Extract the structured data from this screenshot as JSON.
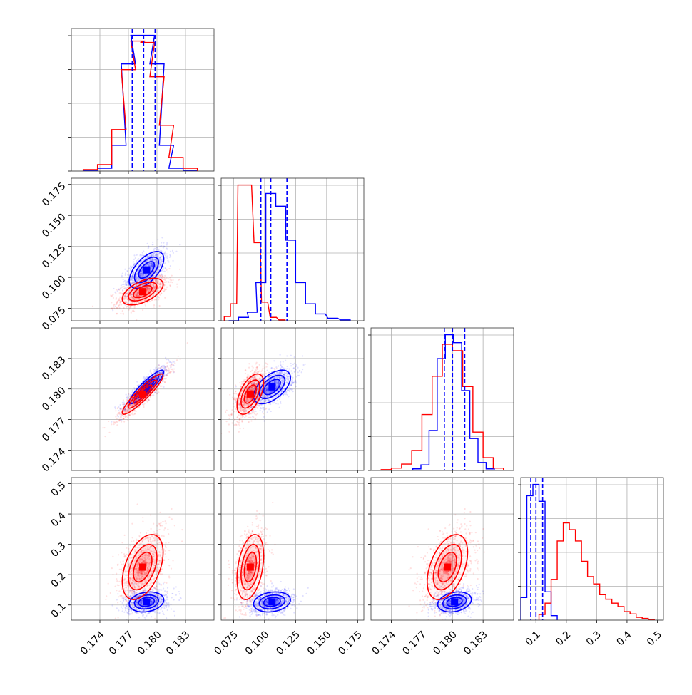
{
  "chart_data": {
    "type": "scatter",
    "style": {
      "grid": true,
      "legend": "none"
    },
    "series": [
      {
        "color": "#0000ff"
      },
      {
        "color": "#ff0000"
      }
    ],
    "tick_labels": {
      "p0": [
        "0.174",
        "0.177",
        "0.180",
        "0.183"
      ],
      "p1": [
        "0.075",
        "0.100",
        "0.125",
        "0.150",
        "0.175"
      ],
      "p2": [
        "0.174",
        "0.177",
        "0.180",
        "0.183"
      ],
      "p3": [
        "0.1",
        "0.2",
        "0.3",
        "0.4",
        "0.5"
      ]
    },
    "params": [
      {
        "ticks": [
          0.174,
          0.177,
          0.18,
          0.183
        ],
        "range": [
          0.171,
          0.186
        ]
      },
      {
        "ticks": [
          0.075,
          0.1,
          0.125,
          0.15,
          0.175
        ],
        "range": [
          0.065,
          0.18
        ]
      },
      {
        "ticks": [
          0.174,
          0.177,
          0.18,
          0.183
        ],
        "range": [
          0.172,
          0.186
        ]
      },
      {
        "ticks": [
          0.1,
          0.2,
          0.3,
          0.4,
          0.5
        ],
        "range": [
          0.05,
          0.52
        ]
      }
    ],
    "diagonal": [
      {
        "param": 0,
        "quantile_lines": [
          0.1774,
          0.1786,
          0.1798
        ],
        "hist_blue": {
          "x": [
            0.173,
            0.1745,
            0.176,
            0.177,
            0.178,
            0.179,
            0.18,
            0.181,
            0.182,
            0.1835
          ],
          "y": [
            1,
            4,
            36,
            150,
            190,
            190,
            150,
            36,
            4,
            1
          ]
        },
        "hist_red": {
          "x": [
            0.173,
            0.1745,
            0.176,
            0.177,
            0.178,
            0.179,
            0.18,
            0.181,
            0.182,
            0.1835
          ],
          "y": [
            2,
            9,
            58,
            142,
            182,
            180,
            132,
            64,
            19,
            4
          ]
        }
      },
      {
        "param": 1,
        "quantile_lines": [
          0.097,
          0.105,
          0.118
        ],
        "hist_blue": {
          "x": [
            0.075,
            0.083,
            0.09,
            0.097,
            0.105,
            0.113,
            0.121,
            0.129,
            0.137,
            0.145,
            0.155,
            0.165
          ],
          "y": [
            0,
            4,
            10,
            45,
            150,
            135,
            95,
            45,
            20,
            8,
            3,
            1
          ]
        },
        "hist_red": {
          "x": [
            0.07,
            0.075,
            0.081,
            0.087,
            0.094,
            0.1,
            0.107,
            0.114
          ],
          "y": [
            5,
            20,
            160,
            160,
            92,
            22,
            4,
            1
          ]
        }
      },
      {
        "param": 2,
        "quantile_lines": [
          0.1792,
          0.18,
          0.1812
        ],
        "hist_blue": {
          "x": [
            0.1765,
            0.1773,
            0.1781,
            0.1789,
            0.1797,
            0.1805,
            0.1813,
            0.1821,
            0.1829,
            0.1837
          ],
          "y": [
            2,
            7,
            50,
            140,
            170,
            160,
            100,
            40,
            10,
            2
          ]
        },
        "hist_red": {
          "x": [
            0.1735,
            0.1745,
            0.1755,
            0.1765,
            0.1775,
            0.1785,
            0.1795,
            0.1805,
            0.1815,
            0.1825,
            0.1835,
            0.1845
          ],
          "y": [
            1,
            3,
            8,
            25,
            70,
            118,
            158,
            150,
            105,
            48,
            16,
            3
          ]
        }
      },
      {
        "param": 3,
        "quantile_lines": [
          0.083,
          0.1,
          0.122
        ],
        "hist_blue": {
          "x": [
            0.06,
            0.08,
            0.1,
            0.12,
            0.14,
            0.16
          ],
          "y": [
            40,
            220,
            240,
            210,
            50,
            8
          ]
        },
        "hist_red": {
          "x": [
            0.12,
            0.14,
            0.16,
            0.18,
            0.2,
            0.22,
            0.24,
            0.26,
            0.28,
            0.3,
            0.32,
            0.34,
            0.36,
            0.38,
            0.4,
            0.42,
            0.44,
            0.46,
            0.48
          ],
          "y": [
            10,
            30,
            72,
            140,
            172,
            160,
            140,
            104,
            77,
            64,
            45,
            37,
            30,
            24,
            15,
            11,
            5,
            3,
            1
          ]
        }
      }
    ],
    "scatter_pairs": [
      {
        "px": 0,
        "py": 1,
        "blue": {
          "center": [
            0.1789,
            0.106
          ],
          "sd": [
            0.0011,
            0.009
          ],
          "rho": 0.6
        },
        "red": {
          "center": [
            0.1785,
            0.0885
          ],
          "sd": [
            0.0013,
            0.0065
          ],
          "rho": 0.55
        }
      },
      {
        "px": 0,
        "py": 2,
        "blue": {
          "center": [
            0.1789,
            0.1802
          ],
          "sd": [
            0.0011,
            0.001
          ],
          "rho": 0.9
        },
        "red": {
          "center": [
            0.1785,
            0.1795
          ],
          "sd": [
            0.0013,
            0.0012
          ],
          "rho": 0.92
        }
      },
      {
        "px": 1,
        "py": 2,
        "blue": {
          "center": [
            0.106,
            0.1802
          ],
          "sd": [
            0.009,
            0.001
          ],
          "rho": 0.55
        },
        "red": {
          "center": [
            0.0885,
            0.1795
          ],
          "sd": [
            0.0065,
            0.0012
          ],
          "rho": 0.55
        }
      },
      {
        "px": 0,
        "py": 3,
        "blue": {
          "center": [
            0.1789,
            0.11
          ],
          "sd": [
            0.0011,
            0.02
          ],
          "rho": 0.2
        },
        "red": {
          "center": [
            0.1785,
            0.225
          ],
          "sd": [
            0.0013,
            0.065
          ],
          "rho": 0.45
        }
      },
      {
        "px": 1,
        "py": 3,
        "blue": {
          "center": [
            0.106,
            0.11
          ],
          "sd": [
            0.009,
            0.02
          ],
          "rho": 0.2
        },
        "red": {
          "center": [
            0.0885,
            0.225
          ],
          "sd": [
            0.0065,
            0.065
          ],
          "rho": 0.35
        }
      },
      {
        "px": 2,
        "py": 3,
        "blue": {
          "center": [
            0.1802,
            0.11
          ],
          "sd": [
            0.001,
            0.02
          ],
          "rho": 0.25
        },
        "red": {
          "center": [
            0.1795,
            0.225
          ],
          "sd": [
            0.0012,
            0.065
          ],
          "rho": 0.45
        }
      }
    ]
  }
}
